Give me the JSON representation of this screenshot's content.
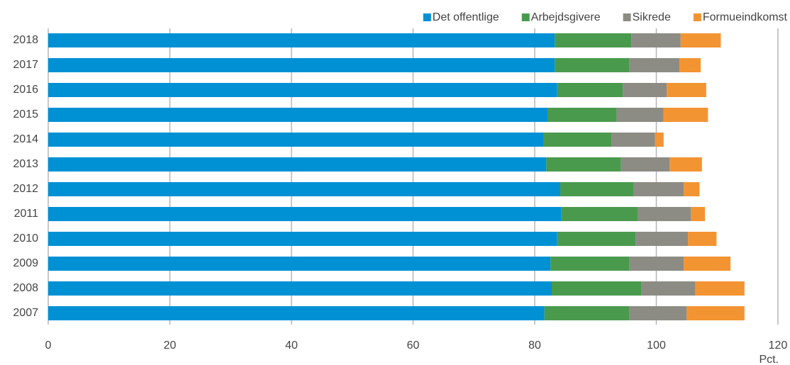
{
  "chart_data": {
    "type": "stacked_barh",
    "categories": [
      "2018",
      "2017",
      "2016",
      "2015",
      "2014",
      "2013",
      "2012",
      "2011",
      "2010",
      "2009",
      "2008",
      "2007"
    ],
    "series": [
      {
        "name": "Det offentlige",
        "color": "#0091d5",
        "values": [
          83.3,
          83.3,
          83.7,
          82.1,
          81.4,
          81.9,
          84.2,
          84.4,
          83.7,
          82.6,
          82.8,
          81.6
        ]
      },
      {
        "name": "Arbejdsgivere",
        "color": "#4a9a4e",
        "values": [
          12.6,
          12.3,
          10.8,
          11.4,
          11.2,
          12.3,
          12.1,
          12.6,
          12.9,
          13.0,
          14.7,
          14.0
        ]
      },
      {
        "name": "Sikrede",
        "color": "#8c8c84",
        "values": [
          8.1,
          8.2,
          7.2,
          7.7,
          7.2,
          8.0,
          8.2,
          8.7,
          8.6,
          8.9,
          8.9,
          9.4
        ]
      },
      {
        "name": "Formueindkomst",
        "color": "#f39433",
        "values": [
          6.6,
          3.5,
          6.5,
          7.3,
          1.4,
          5.3,
          2.6,
          2.3,
          4.7,
          7.7,
          8.1,
          9.5
        ]
      }
    ],
    "x_label": "Pct.",
    "xlim": [
      0,
      120
    ],
    "xticks": [
      0,
      20,
      40,
      60,
      80,
      100,
      120
    ],
    "grid": true,
    "legend": "top-right"
  }
}
